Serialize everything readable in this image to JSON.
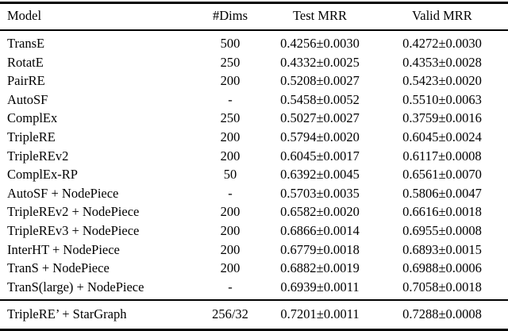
{
  "table": {
    "columns": [
      "Model",
      "#Dims",
      "Test MRR",
      "Valid MRR"
    ],
    "body_rows": [
      {
        "model": "TransE",
        "dims": "500",
        "test_mrr": "0.4256±0.0030",
        "valid_mrr": "0.4272±0.0030"
      },
      {
        "model": "RotatE",
        "dims": "250",
        "test_mrr": "0.4332±0.0025",
        "valid_mrr": "0.4353±0.0028"
      },
      {
        "model": "PairRE",
        "dims": "200",
        "test_mrr": "0.5208±0.0027",
        "valid_mrr": "0.5423±0.0020"
      },
      {
        "model": "AutoSF",
        "dims": "-",
        "test_mrr": "0.5458±0.0052",
        "valid_mrr": "0.5510±0.0063"
      },
      {
        "model": "ComplEx",
        "dims": "250",
        "test_mrr": "0.5027±0.0027",
        "valid_mrr": "0.3759±0.0016"
      },
      {
        "model": "TripleRE",
        "dims": "200",
        "test_mrr": "0.5794±0.0020",
        "valid_mrr": "0.6045±0.0024"
      },
      {
        "model": "TripleREv2",
        "dims": "200",
        "test_mrr": "0.6045±0.0017",
        "valid_mrr": "0.6117±0.0008"
      },
      {
        "model": "ComplEx-RP",
        "dims": "50",
        "test_mrr": "0.6392±0.0045",
        "valid_mrr": "0.6561±0.0070"
      },
      {
        "model": "AutoSF + NodePiece",
        "dims": "-",
        "test_mrr": "0.5703±0.0035",
        "valid_mrr": "0.5806±0.0047"
      },
      {
        "model": "TripleREv2 + NodePiece",
        "dims": "200",
        "test_mrr": "0.6582±0.0020",
        "valid_mrr": "0.6616±0.0018"
      },
      {
        "model": "TripleREv3 + NodePiece",
        "dims": "200",
        "test_mrr": "0.6866±0.0014",
        "valid_mrr": "0.6955±0.0008"
      },
      {
        "model": "InterHT + NodePiece",
        "dims": "200",
        "test_mrr": "0.6779±0.0018",
        "valid_mrr": "0.6893±0.0015"
      },
      {
        "model": "TranS + NodePiece",
        "dims": "200",
        "test_mrr": "0.6882±0.0019",
        "valid_mrr": "0.6988±0.0006"
      },
      {
        "model": "TranS(large) + NodePiece",
        "dims": "-",
        "test_mrr": "0.6939±0.0011",
        "valid_mrr": "0.7058±0.0018"
      }
    ],
    "footer_row": {
      "model": "TripleRE’ + StarGraph",
      "dims": "256/32",
      "test_mrr": "0.7201±0.0011",
      "valid_mrr": "0.7288±0.0008"
    }
  },
  "colors": {
    "text": "#000000",
    "background": "#ffffff",
    "rule": "#000000"
  }
}
